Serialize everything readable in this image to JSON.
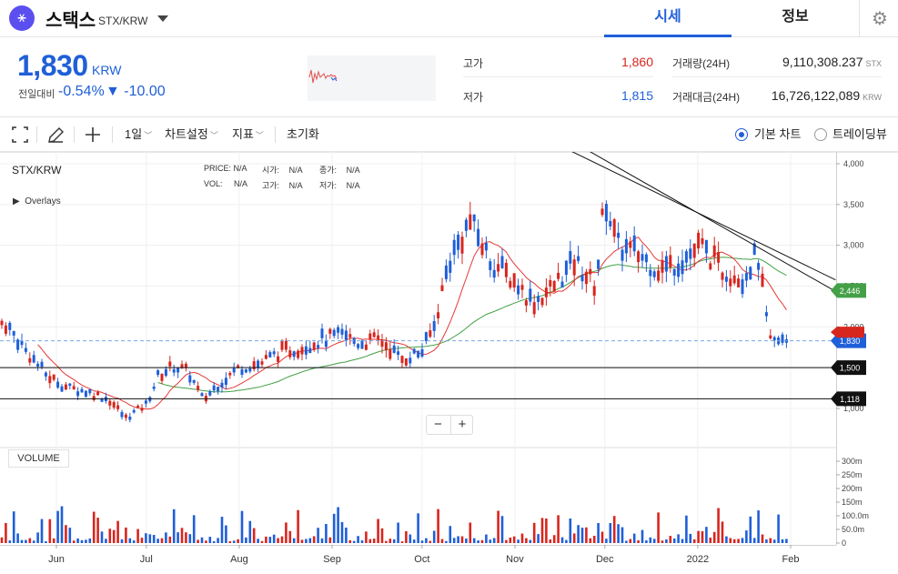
{
  "header": {
    "coin_symbol_glyph": "⚹",
    "coin_name": "스택스",
    "pair": "STX/KRW",
    "tabs": [
      {
        "label": "시세",
        "active": true
      },
      {
        "label": "정보",
        "active": false
      }
    ],
    "settings_icon": "gear-icon"
  },
  "price": {
    "current": "1,830",
    "unit": "KRW",
    "change_label": "전일대비",
    "change_rate": "-0.54%",
    "change_arrow": "▼",
    "change_value": "-10.00",
    "high_label": "고가",
    "high_value": "1,860",
    "low_label": "저가",
    "low_value": "1,815",
    "volume_label": "거래량(24H)",
    "volume_value": "9,110,308.237",
    "volume_unit": "STX",
    "amount_label": "거래대금(24H)",
    "amount_value": "16,726,122,089",
    "amount_unit": "KRW",
    "colors": {
      "up": "#d7261e",
      "down": "#1f5fd8"
    }
  },
  "toolbar": {
    "fullscreen_icon": "fullscreen-icon",
    "draw_icon": "pencil-icon",
    "crosshair_icon": "plus-icon",
    "interval": "1일",
    "chart_settings": "차트설정",
    "indicators": "지표",
    "reset": "초기화",
    "chart_modes": [
      {
        "label": "기본 차트",
        "selected": true
      },
      {
        "label": "트레이딩뷰",
        "selected": false
      }
    ]
  },
  "chart": {
    "symbol": "STX/KRW",
    "overlays_label": "Overlays",
    "legend": [
      {
        "label": "PRICE:",
        "value": "N/A"
      },
      {
        "label": "시가:",
        "value": "N/A"
      },
      {
        "label": "종가:",
        "value": "N/A"
      },
      {
        "label": "VOL:",
        "value": "N/A"
      },
      {
        "label": "고가:",
        "value": "N/A"
      },
      {
        "label": "저가:",
        "value": "N/A"
      }
    ],
    "zoom_out": "−",
    "zoom_in": "+",
    "volume_label": "VOLUME",
    "badges": [
      {
        "value": 2446,
        "text": "2,446",
        "color": "#43a047"
      },
      {
        "value": 1830,
        "text": "1,830",
        "color": "#1f5fd8"
      },
      {
        "value": 1500,
        "text": "1,500",
        "color": "#111111"
      },
      {
        "value": 1118,
        "text": "1,118",
        "color": "#111111"
      }
    ]
  },
  "chart_data": {
    "type": "candlestick",
    "y_ticks": [
      "4,000",
      "3,500",
      "3,000",
      "2,500",
      "2,000",
      "1,500",
      "1,000"
    ],
    "y_tick_values": [
      4000,
      3500,
      3000,
      2500,
      2000,
      1500,
      1000
    ],
    "ylim": [
      900,
      4100
    ],
    "x_ticks": [
      "Jun",
      "Jul",
      "Aug",
      "Sep",
      "Oct",
      "Nov",
      "Dec",
      "2022",
      "Feb"
    ],
    "volume_ticks": [
      "300m",
      "250m",
      "200m",
      "150m",
      "100.0m",
      "50.0m",
      "0"
    ],
    "volume_tick_values": [
      300,
      250,
      200,
      150,
      100,
      50,
      0
    ],
    "volume_ylim": [
      0,
      340
    ],
    "price_path": [
      [
        "2021-05-15",
        2050
      ],
      [
        "2021-05-22",
        1700
      ],
      [
        "2021-05-29",
        1400
      ],
      [
        "2021-06-05",
        1250
      ],
      [
        "2021-06-12",
        1200
      ],
      [
        "2021-06-19",
        1100
      ],
      [
        "2021-06-24",
        880
      ],
      [
        "2021-07-01",
        1050
      ],
      [
        "2021-07-05",
        1400
      ],
      [
        "2021-07-10",
        1520
      ],
      [
        "2021-07-15",
        1450
      ],
      [
        "2021-07-20",
        1100
      ],
      [
        "2021-07-25",
        1300
      ],
      [
        "2021-08-01",
        1500
      ],
      [
        "2021-08-08",
        1550
      ],
      [
        "2021-08-15",
        1700
      ],
      [
        "2021-08-22",
        1750
      ],
      [
        "2021-08-29",
        1850
      ],
      [
        "2021-09-05",
        1900
      ],
      [
        "2021-09-10",
        1800
      ],
      [
        "2021-09-17",
        1850
      ],
      [
        "2021-09-24",
        1600
      ],
      [
        "2021-10-01",
        1700
      ],
      [
        "2021-10-05",
        2000
      ],
      [
        "2021-10-10",
        2800
      ],
      [
        "2021-10-17",
        3300
      ],
      [
        "2021-10-24",
        2800
      ],
      [
        "2021-10-31",
        2600
      ],
      [
        "2021-11-07",
        2300
      ],
      [
        "2021-11-14",
        2500
      ],
      [
        "2021-11-21",
        2800
      ],
      [
        "2021-11-28",
        2500
      ],
      [
        "2021-12-01",
        3600
      ],
      [
        "2021-12-05",
        3000
      ],
      [
        "2021-12-12",
        2900
      ],
      [
        "2021-12-19",
        2700
      ],
      [
        "2021-12-26",
        2800
      ],
      [
        "2022-01-02",
        3000
      ],
      [
        "2022-01-09",
        2700
      ],
      [
        "2022-01-16",
        2600
      ],
      [
        "2022-01-21",
        2900
      ],
      [
        "2022-01-25",
        1800
      ],
      [
        "2022-01-31",
        1830
      ]
    ],
    "trendlines": [
      {
        "from": [
          "2021-11-06",
          4400
        ],
        "to": [
          "2022-02-16",
          2576
        ]
      },
      {
        "from": [
          "2021-11-22",
          4233
        ],
        "to": [
          "2022-02-16",
          2435
        ]
      }
    ]
  }
}
